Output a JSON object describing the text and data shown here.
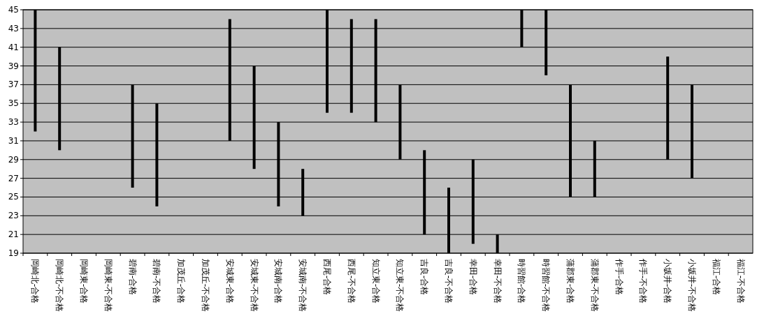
{
  "chart_data": {
    "type": "bar",
    "categories": [
      "岡崎北-合格",
      "岡崎北-不合格",
      "岡崎東-合格",
      "岡崎東-不合格",
      "碧南-合格",
      "碧南-不合格",
      "加茂丘-合格",
      "加茂丘-不合格",
      "安城東-合格",
      "安城東-不合格",
      "安城南-合格",
      "安城南-不合格",
      "西尾-合格",
      "西尾-不合格",
      "知立東-合格",
      "知立東-不合格",
      "吉良-合格",
      "吉良-不合格",
      "幸田-合格",
      "幸田-不合格",
      "時習館-合格",
      "時習館-不合格",
      "蒲郡東-合格",
      "蒲郡東-不合格",
      "作手-合格",
      "作手-不合格",
      "小坂井-合格",
      "小坂井-不合格",
      "福江-合格",
      "福江-不合格"
    ],
    "base": [
      32,
      30,
      null,
      null,
      26,
      24,
      null,
      null,
      31,
      28,
      24,
      23,
      34,
      34,
      33,
      29,
      21,
      19,
      20,
      19,
      41,
      38,
      25,
      25,
      null,
      null,
      29,
      27,
      null,
      null
    ],
    "values": [
      13,
      11,
      null,
      null,
      11,
      11,
      null,
      null,
      13,
      11,
      9,
      5,
      11,
      10,
      11,
      8,
      9,
      7,
      9,
      2,
      4,
      7,
      12,
      6,
      null,
      null,
      11,
      10,
      null,
      null
    ],
    "color": "#000000",
    "ylim": [
      19,
      45
    ],
    "yticks": [
      19,
      21,
      23,
      25,
      27,
      29,
      31,
      33,
      35,
      37,
      39,
      41,
      43,
      45
    ],
    "grid": "y"
  }
}
